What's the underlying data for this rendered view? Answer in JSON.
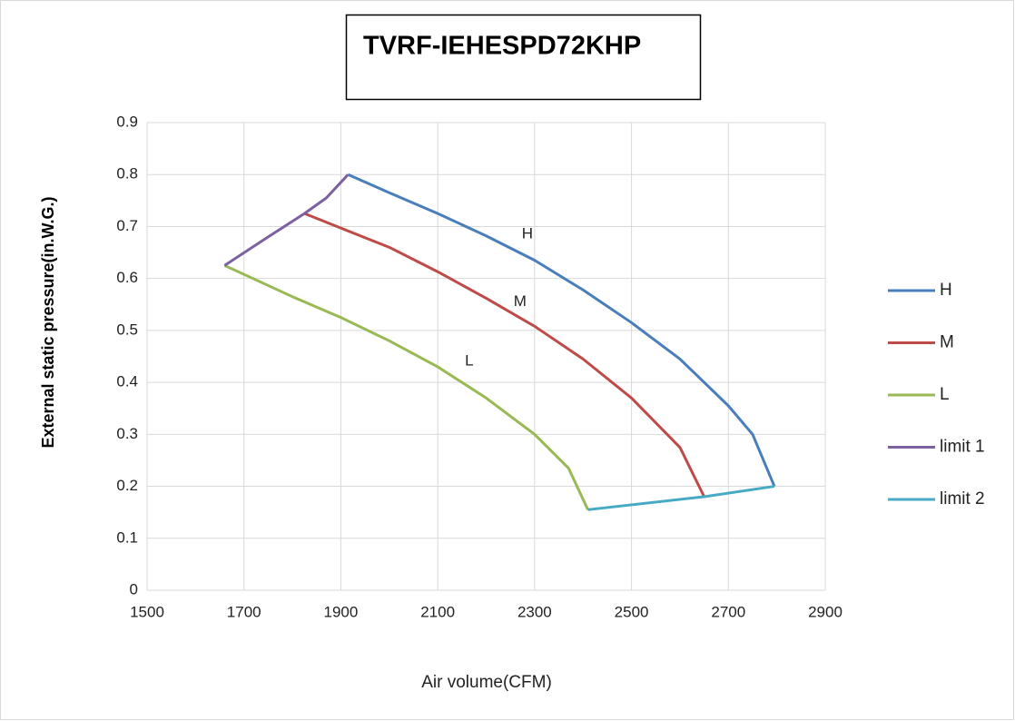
{
  "chart_data": {
    "type": "line",
    "title": "TVRF-IEHESPD72KHP",
    "x_label": "Air volume(CFM)",
    "y_label": "External static pressure(in.W.G.)",
    "xlim": [
      1500,
      2900
    ],
    "xticks": [
      1500,
      1700,
      1900,
      2100,
      2300,
      2500,
      2700,
      2900
    ],
    "ylim": [
      0,
      0.9
    ],
    "yticks": [
      0,
      0.1,
      0.2,
      0.3,
      0.4,
      0.5,
      0.6,
      0.7,
      0.8,
      0.9
    ],
    "grid": true,
    "legend": "right",
    "series": [
      {
        "name": "H",
        "color": "#4a7ebb",
        "x": [
          1915,
          2000,
          2100,
          2200,
          2300,
          2400,
          2500,
          2600,
          2700,
          2750,
          2795
        ],
        "values": [
          0.8,
          0.765,
          0.725,
          0.682,
          0.635,
          0.578,
          0.515,
          0.445,
          0.355,
          0.3,
          0.2
        ]
      },
      {
        "name": "M",
        "color": "#be4b48",
        "x": [
          1825,
          1900,
          2000,
          2100,
          2200,
          2300,
          2400,
          2500,
          2600,
          2650
        ],
        "values": [
          0.725,
          0.697,
          0.66,
          0.613,
          0.562,
          0.508,
          0.445,
          0.37,
          0.275,
          0.18
        ]
      },
      {
        "name": "L",
        "color": "#98b954",
        "x": [
          1660,
          1800,
          1900,
          2000,
          2100,
          2200,
          2300,
          2370,
          2410
        ],
        "values": [
          0.625,
          0.565,
          0.525,
          0.48,
          0.43,
          0.37,
          0.3,
          0.235,
          0.155
        ]
      },
      {
        "name": "limit 1",
        "color": "#7d60a0",
        "x": [
          1660,
          1750,
          1825,
          1870,
          1915
        ],
        "values": [
          0.625,
          0.68,
          0.725,
          0.755,
          0.8
        ]
      },
      {
        "name": "limit 2",
        "color": "#46aac5",
        "x": [
          2410,
          2650,
          2795
        ],
        "values": [
          0.155,
          0.18,
          0.2
        ]
      }
    ],
    "annotations": [
      {
        "text": "H",
        "x": 2285,
        "y": 0.685
      },
      {
        "text": "M",
        "x": 2270,
        "y": 0.555
      },
      {
        "text": "L",
        "x": 2165,
        "y": 0.44
      }
    ]
  }
}
